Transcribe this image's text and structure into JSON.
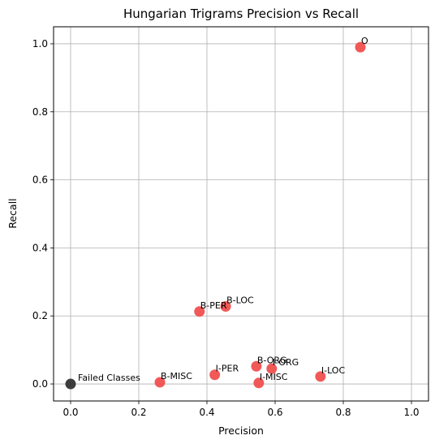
{
  "chart_data": {
    "type": "scatter",
    "title": "Hungarian Trigrams Precision vs Recall",
    "xlabel": "Precision",
    "ylabel": "Recall",
    "xlim": [
      -0.05,
      1.05
    ],
    "ylim": [
      -0.05,
      1.05
    ],
    "xticks": [
      "0.0",
      "0.2",
      "0.4",
      "0.6",
      "0.8",
      "1.0"
    ],
    "yticks": [
      "0.0",
      "0.2",
      "0.4",
      "0.6",
      "0.8",
      "1.0"
    ],
    "grid": true,
    "series": [
      {
        "color": "#f0504f",
        "points": [
          {
            "label": "O",
            "x": 0.85,
            "y": 0.99
          },
          {
            "label": "B-LOC",
            "x": 0.455,
            "y": 0.228
          },
          {
            "label": "B-PER",
            "x": 0.378,
            "y": 0.213
          },
          {
            "label": "B-ORG",
            "x": 0.545,
            "y": 0.052
          },
          {
            "label": "I-ORG",
            "x": 0.59,
            "y": 0.045
          },
          {
            "label": "I-LOC",
            "x": 0.733,
            "y": 0.022
          },
          {
            "label": "I-PER",
            "x": 0.423,
            "y": 0.027
          },
          {
            "label": "B-MISC",
            "x": 0.262,
            "y": 0.005
          },
          {
            "label": "I-MISC",
            "x": 0.552,
            "y": 0.003
          }
        ]
      },
      {
        "color": "#333333",
        "points": [
          {
            "label": "Failed Classes",
            "x": 0.0,
            "y": 0.0
          }
        ]
      }
    ]
  }
}
